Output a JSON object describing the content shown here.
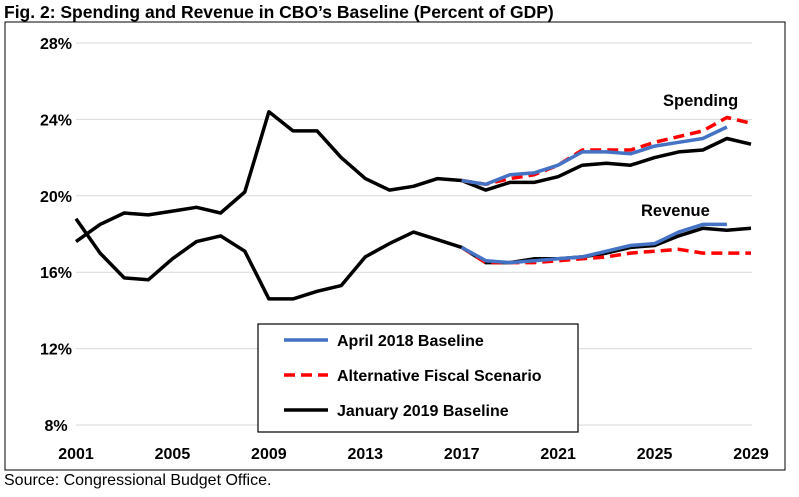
{
  "figure": {
    "title": "Fig. 2: Spending and Revenue in CBO’s Baseline (Percent of GDP)",
    "source": "Source: Congressional Budget Office."
  },
  "chart_data": {
    "type": "line",
    "title": "Fig. 2: Spending and Revenue in CBO’s Baseline (Percent of GDP)",
    "xlabel": "",
    "ylabel": "",
    "xlim": [
      2001,
      2029
    ],
    "ylim": [
      8,
      30
    ],
    "x_ticks": [
      2001,
      2005,
      2009,
      2013,
      2017,
      2021,
      2025,
      2029
    ],
    "x_tick_labels": [
      "2001",
      "2005",
      "2009",
      "2013",
      "2017",
      "2021",
      "2025",
      "2029"
    ],
    "y_ticks": [
      8,
      12,
      16,
      20,
      24,
      28
    ],
    "y_tick_labels": [
      "8%",
      "12%",
      "16%",
      "20%",
      "24%",
      "28%"
    ],
    "grid": "horizontal",
    "legend_position": "bottom-center",
    "annotations": [
      "Spending",
      "Revenue"
    ],
    "legend": [
      {
        "label": "April 2018 Baseline",
        "color": "#4472C4",
        "style": "solid"
      },
      {
        "label": "Alternative Fiscal Scenario",
        "color": "#FF0000",
        "style": "dashed"
      },
      {
        "label": "January 2019 Baseline",
        "color": "#000000",
        "style": "solid"
      }
    ],
    "series": [
      {
        "name": "Spending - April 2018 Baseline",
        "color": "#4472C4",
        "dash": false,
        "x": [
          2017,
          2018,
          2019,
          2020,
          2021,
          2022,
          2023,
          2024,
          2025,
          2026,
          2027,
          2028
        ],
        "values": [
          20.8,
          20.6,
          21.1,
          21.2,
          21.6,
          22.3,
          22.3,
          22.2,
          22.6,
          22.8,
          23.0,
          23.6
        ]
      },
      {
        "name": "Spending - Alternative Fiscal Scenario",
        "color": "#FF0000",
        "dash": true,
        "x": [
          2017,
          2018,
          2019,
          2020,
          2021,
          2022,
          2023,
          2024,
          2025,
          2026,
          2027,
          2028,
          2029
        ],
        "values": [
          20.8,
          20.6,
          20.9,
          21.1,
          21.6,
          22.4,
          22.4,
          22.4,
          22.8,
          23.1,
          23.4,
          24.1,
          23.8
        ]
      },
      {
        "name": "Spending - January 2019 Baseline",
        "color": "#000000",
        "dash": false,
        "x": [
          2001,
          2002,
          2003,
          2004,
          2005,
          2006,
          2007,
          2008,
          2009,
          2010,
          2011,
          2012,
          2013,
          2014,
          2015,
          2016,
          2017,
          2018,
          2019,
          2020,
          2021,
          2022,
          2023,
          2024,
          2025,
          2026,
          2027,
          2028,
          2029
        ],
        "values": [
          17.6,
          18.5,
          19.1,
          19.0,
          19.2,
          19.4,
          19.1,
          20.2,
          24.4,
          23.4,
          23.4,
          22.0,
          20.9,
          20.3,
          20.5,
          20.9,
          20.8,
          20.3,
          20.7,
          20.7,
          21.0,
          21.6,
          21.7,
          21.6,
          22.0,
          22.3,
          22.4,
          23.0,
          22.7
        ]
      },
      {
        "name": "Revenue - April 2018 Baseline",
        "color": "#4472C4",
        "dash": false,
        "x": [
          2017,
          2018,
          2019,
          2020,
          2021,
          2022,
          2023,
          2024,
          2025,
          2026,
          2027,
          2028
        ],
        "values": [
          17.3,
          16.6,
          16.5,
          16.6,
          16.7,
          16.8,
          17.1,
          17.4,
          17.5,
          18.1,
          18.5,
          18.5
        ]
      },
      {
        "name": "Revenue - Alternative Fiscal Scenario",
        "color": "#FF0000",
        "dash": true,
        "x": [
          2017,
          2018,
          2019,
          2020,
          2021,
          2022,
          2023,
          2024,
          2025,
          2026,
          2027,
          2028,
          2029
        ],
        "values": [
          17.3,
          16.5,
          16.5,
          16.5,
          16.6,
          16.7,
          16.8,
          17.0,
          17.1,
          17.2,
          17.0,
          17.0,
          17.0
        ]
      },
      {
        "name": "Revenue - January 2019 Baseline",
        "color": "#000000",
        "dash": false,
        "x": [
          2001,
          2002,
          2003,
          2004,
          2005,
          2006,
          2007,
          2008,
          2009,
          2010,
          2011,
          2012,
          2013,
          2014,
          2015,
          2016,
          2017,
          2018,
          2019,
          2020,
          2021,
          2022,
          2023,
          2024,
          2025,
          2026,
          2027,
          2028,
          2029
        ],
        "values": [
          18.8,
          17.0,
          15.7,
          15.6,
          16.7,
          17.6,
          17.9,
          17.1,
          14.6,
          14.6,
          15.0,
          15.3,
          16.8,
          17.5,
          18.1,
          17.7,
          17.3,
          16.5,
          16.5,
          16.7,
          16.7,
          16.8,
          17.0,
          17.3,
          17.4,
          17.9,
          18.3,
          18.2,
          18.3
        ]
      }
    ]
  }
}
